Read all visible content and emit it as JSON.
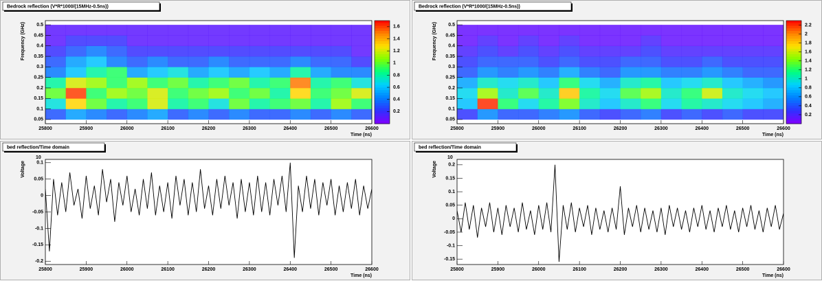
{
  "chart_data": [
    {
      "type": "contour",
      "title": "Bedrock reflection (V*R*1000/(15MHz-0.5ns))",
      "xlabel": "Time (ns)",
      "ylabel": "Frequency (GHz)",
      "xlim": [
        25800,
        26600
      ],
      "xticks": [
        25800,
        25900,
        26000,
        26100,
        26200,
        26300,
        26400,
        26500,
        26600
      ],
      "ylim": [
        0.03,
        0.52
      ],
      "yticks": [
        0.05,
        0.1,
        0.15,
        0.2,
        0.25,
        0.3,
        0.35,
        0.4,
        0.45,
        0.5
      ],
      "zlim": [
        0,
        1.7
      ],
      "zticks": [
        0.2,
        0.4,
        0.6,
        0.8,
        1,
        1.2,
        1.4,
        1.6
      ],
      "colormap": [
        "#8000ff",
        "#3030ff",
        "#0080ff",
        "#00d0ff",
        "#00ff80",
        "#80ff00",
        "#ffe000",
        "#ff8000",
        "#ff0000"
      ],
      "xbins": [
        25800,
        25850,
        25900,
        25950,
        26000,
        26050,
        26100,
        26150,
        26200,
        26250,
        26300,
        26350,
        26400,
        26450,
        26500,
        26550,
        26600
      ],
      "ybins": [
        0.05,
        0.1,
        0.15,
        0.2,
        0.25,
        0.3,
        0.35,
        0.4,
        0.45,
        0.5
      ],
      "z": [
        [
          0.3,
          0.5,
          0.4,
          0.3,
          0.4,
          0.5,
          0.3,
          0.4,
          0.3,
          0.4,
          0.3,
          0.3,
          0.4,
          0.3,
          0.4,
          0.3
        ],
        [
          0.7,
          1.3,
          1.0,
          0.8,
          0.9,
          1.2,
          0.8,
          0.9,
          0.7,
          1.0,
          0.8,
          0.9,
          1.0,
          0.8,
          1.1,
          0.9
        ],
        [
          1.0,
          1.6,
          0.9,
          1.1,
          1.0,
          1.2,
          0.9,
          1.0,
          1.1,
          0.9,
          1.0,
          0.8,
          1.3,
          0.9,
          1.0,
          1.2
        ],
        [
          0.8,
          1.2,
          1.1,
          0.9,
          1.1,
          0.9,
          1.0,
          0.8,
          0.9,
          1.0,
          0.8,
          0.9,
          1.5,
          0.8,
          0.9,
          0.7
        ],
        [
          0.4,
          0.6,
          0.8,
          0.9,
          0.5,
          0.6,
          0.7,
          0.5,
          0.6,
          0.5,
          0.6,
          0.5,
          0.8,
          0.5,
          0.4,
          0.4
        ],
        [
          0.3,
          0.5,
          0.6,
          0.4,
          0.3,
          0.4,
          0.3,
          0.3,
          0.4,
          0.3,
          0.3,
          0.3,
          0.4,
          0.3,
          0.3,
          0.2
        ],
        [
          0.2,
          0.3,
          0.4,
          0.3,
          0.2,
          0.2,
          0.2,
          0.2,
          0.2,
          0.2,
          0.2,
          0.2,
          0.2,
          0.2,
          0.2,
          0.1
        ],
        [
          0.1,
          0.2,
          0.2,
          0.2,
          0.1,
          0.1,
          0.1,
          0.1,
          0.1,
          0.1,
          0.1,
          0.1,
          0.1,
          0.1,
          0.1,
          0.1
        ],
        [
          0.1,
          0.1,
          0.1,
          0.1,
          0.1,
          0.1,
          0.1,
          0.1,
          0.1,
          0.1,
          0.1,
          0.1,
          0.1,
          0.1,
          0.1,
          0.1
        ]
      ]
    },
    {
      "type": "contour",
      "title": "Bedrock reflection (V*R*1000/(15MHz-0.5ns))",
      "xlabel": "Time (ns)",
      "ylabel": "Frequency (GHz)",
      "xlim": [
        25800,
        26600
      ],
      "xticks": [
        25800,
        25900,
        26000,
        26100,
        26200,
        26300,
        26400,
        26500,
        26600
      ],
      "ylim": [
        0.03,
        0.52
      ],
      "yticks": [
        0.05,
        0.1,
        0.15,
        0.2,
        0.25,
        0.3,
        0.35,
        0.4,
        0.45,
        0.5
      ],
      "zlim": [
        0,
        2.3
      ],
      "zticks": [
        0.2,
        0.4,
        0.6,
        0.8,
        1,
        1.2,
        1.4,
        1.6,
        1.8,
        2,
        2.2
      ],
      "colormap": [
        "#8000ff",
        "#3030ff",
        "#0080ff",
        "#00d0ff",
        "#00ff80",
        "#80ff00",
        "#ffe000",
        "#ff8000",
        "#ff0000"
      ],
      "xbins": [
        25800,
        25850,
        25900,
        25950,
        26000,
        26050,
        26100,
        26150,
        26200,
        26250,
        26300,
        26350,
        26400,
        26450,
        26500,
        26550,
        26600
      ],
      "ybins": [
        0.05,
        0.1,
        0.15,
        0.2,
        0.25,
        0.3,
        0.35,
        0.4,
        0.45,
        0.5
      ],
      "z": [
        [
          0.3,
          0.6,
          0.4,
          0.4,
          0.5,
          0.6,
          0.4,
          0.3,
          0.4,
          0.5,
          0.3,
          0.4,
          0.3,
          0.4,
          0.3,
          0.3
        ],
        [
          0.8,
          2.2,
          1.2,
          0.9,
          1.1,
          1.4,
          1.0,
          0.8,
          1.0,
          1.2,
          0.9,
          1.1,
          1.0,
          0.9,
          0.8,
          0.7
        ],
        [
          0.9,
          1.5,
          1.0,
          1.3,
          1.0,
          1.8,
          1.1,
          0.9,
          1.3,
          1.5,
          1.0,
          1.2,
          1.6,
          1.0,
          0.9,
          0.8
        ],
        [
          0.7,
          1.0,
          0.9,
          1.0,
          0.8,
          1.2,
          0.9,
          0.7,
          1.0,
          1.1,
          0.8,
          0.9,
          1.0,
          0.8,
          0.7,
          0.6
        ],
        [
          0.4,
          0.6,
          0.5,
          0.6,
          0.5,
          0.7,
          0.5,
          0.4,
          0.6,
          0.6,
          0.5,
          0.5,
          0.6,
          0.5,
          0.4,
          0.4
        ],
        [
          0.3,
          0.4,
          0.4,
          0.4,
          0.3,
          0.4,
          0.3,
          0.3,
          0.4,
          0.4,
          0.3,
          0.3,
          0.4,
          0.3,
          0.3,
          0.3
        ],
        [
          0.2,
          0.3,
          0.2,
          0.3,
          0.2,
          0.3,
          0.2,
          0.2,
          0.2,
          0.3,
          0.2,
          0.2,
          0.2,
          0.2,
          0.2,
          0.2
        ],
        [
          0.1,
          0.2,
          0.1,
          0.2,
          0.1,
          0.2,
          0.1,
          0.1,
          0.1,
          0.2,
          0.1,
          0.1,
          0.1,
          0.1,
          0.1,
          0.1
        ],
        [
          0.1,
          0.1,
          0.1,
          0.1,
          0.1,
          0.1,
          0.1,
          0.1,
          0.1,
          0.1,
          0.1,
          0.1,
          0.1,
          0.1,
          0.1,
          0.1
        ]
      ]
    },
    {
      "type": "line",
      "title": "bed reflection/Time domain",
      "xlabel": "Time (ns)",
      "ylabel": "Voltage",
      "yexponent": "10",
      "color": "#000000",
      "xlim": [
        25800,
        26600
      ],
      "xticks": [
        25800,
        25900,
        26000,
        26100,
        26200,
        26300,
        26400,
        26500,
        26600
      ],
      "ylim": [
        -0.21,
        0.11
      ],
      "yticks": [
        -0.2,
        -0.15,
        -0.1,
        -0.05,
        0,
        0.05,
        0.1
      ],
      "x": [
        25800,
        25810,
        25820,
        25830,
        25840,
        25850,
        25860,
        25870,
        25880,
        25890,
        25900,
        25910,
        25920,
        25930,
        25940,
        25950,
        25960,
        25970,
        25980,
        25990,
        26000,
        26010,
        26020,
        26030,
        26040,
        26050,
        26060,
        26070,
        26080,
        26090,
        26100,
        26110,
        26120,
        26130,
        26140,
        26150,
        26160,
        26170,
        26180,
        26190,
        26200,
        26210,
        26220,
        26230,
        26240,
        26250,
        26260,
        26270,
        26280,
        26290,
        26300,
        26310,
        26320,
        26330,
        26340,
        26350,
        26360,
        26370,
        26380,
        26390,
        26400,
        26410,
        26420,
        26430,
        26440,
        26450,
        26460,
        26470,
        26480,
        26490,
        26500,
        26510,
        26520,
        26530,
        26540,
        26550,
        26560,
        26570,
        26580,
        26590,
        26600
      ],
      "values": [
        0.02,
        -0.17,
        0.05,
        -0.06,
        0.04,
        -0.05,
        0.07,
        -0.03,
        0.02,
        -0.07,
        0.06,
        -0.04,
        0.03,
        -0.06,
        0.08,
        -0.02,
        0.05,
        -0.08,
        0.04,
        -0.03,
        0.06,
        -0.05,
        0.02,
        -0.06,
        0.05,
        -0.04,
        0.07,
        -0.06,
        0.03,
        -0.05,
        0.04,
        -0.07,
        0.06,
        -0.03,
        0.05,
        -0.06,
        0.04,
        -0.05,
        0.08,
        -0.04,
        0.03,
        -0.06,
        0.05,
        -0.04,
        0.06,
        -0.03,
        0.04,
        -0.07,
        0.05,
        -0.05,
        0.04,
        -0.06,
        0.06,
        -0.05,
        0.04,
        -0.06,
        0.05,
        -0.03,
        0.06,
        -0.05,
        0.1,
        -0.19,
        0.03,
        -0.05,
        0.06,
        -0.04,
        0.05,
        -0.06,
        0.04,
        -0.03,
        0.05,
        -0.06,
        0.03,
        -0.05,
        0.04,
        -0.04,
        0.05,
        -0.06,
        0.03,
        -0.04,
        0.02
      ]
    },
    {
      "type": "line",
      "title": "bed reflection/Time domain",
      "xlabel": "Time (ns)",
      "ylabel": "Voltage",
      "yexponent": "10",
      "color": "#000000",
      "xlim": [
        25800,
        26600
      ],
      "xticks": [
        25800,
        25900,
        26000,
        26100,
        26200,
        26300,
        26400,
        26500,
        26600
      ],
      "ylim": [
        -0.17,
        0.22
      ],
      "yticks": [
        -0.15,
        -0.1,
        -0.05,
        0,
        0.05,
        0.1,
        0.15,
        0.2
      ],
      "x": [
        25800,
        25810,
        25820,
        25830,
        25840,
        25850,
        25860,
        25870,
        25880,
        25890,
        25900,
        25910,
        25920,
        25930,
        25940,
        25950,
        25960,
        25970,
        25980,
        25990,
        26000,
        26010,
        26020,
        26030,
        26040,
        26050,
        26060,
        26070,
        26080,
        26090,
        26100,
        26110,
        26120,
        26130,
        26140,
        26150,
        26160,
        26170,
        26180,
        26190,
        26200,
        26210,
        26220,
        26230,
        26240,
        26250,
        26260,
        26270,
        26280,
        26290,
        26300,
        26310,
        26320,
        26330,
        26340,
        26350,
        26360,
        26370,
        26380,
        26390,
        26400,
        26410,
        26420,
        26430,
        26440,
        26450,
        26460,
        26470,
        26480,
        26490,
        26500,
        26510,
        26520,
        26530,
        26540,
        26550,
        26560,
        26570,
        26580,
        26590,
        26600
      ],
      "values": [
        0.03,
        -0.05,
        0.06,
        -0.04,
        0.05,
        -0.07,
        0.04,
        -0.03,
        0.06,
        -0.05,
        0.04,
        -0.06,
        0.05,
        -0.03,
        0.04,
        -0.05,
        0.06,
        -0.04,
        0.03,
        -0.06,
        0.05,
        -0.04,
        0.06,
        -0.05,
        0.2,
        -0.16,
        0.05,
        -0.04,
        0.06,
        -0.05,
        0.04,
        -0.03,
        0.05,
        -0.06,
        0.04,
        -0.04,
        0.03,
        -0.05,
        0.04,
        -0.04,
        0.12,
        -0.06,
        0.04,
        -0.03,
        0.05,
        -0.05,
        0.04,
        -0.04,
        0.03,
        -0.05,
        0.04,
        -0.06,
        0.05,
        -0.03,
        0.04,
        -0.04,
        0.03,
        -0.05,
        0.04,
        -0.03,
        0.05,
        -0.04,
        0.03,
        -0.05,
        0.04,
        -0.03,
        0.05,
        -0.04,
        0.03,
        -0.05,
        0.04,
        -0.03,
        0.05,
        -0.04,
        0.03,
        -0.05,
        0.04,
        -0.03,
        0.05,
        -0.04,
        0.02
      ]
    }
  ]
}
